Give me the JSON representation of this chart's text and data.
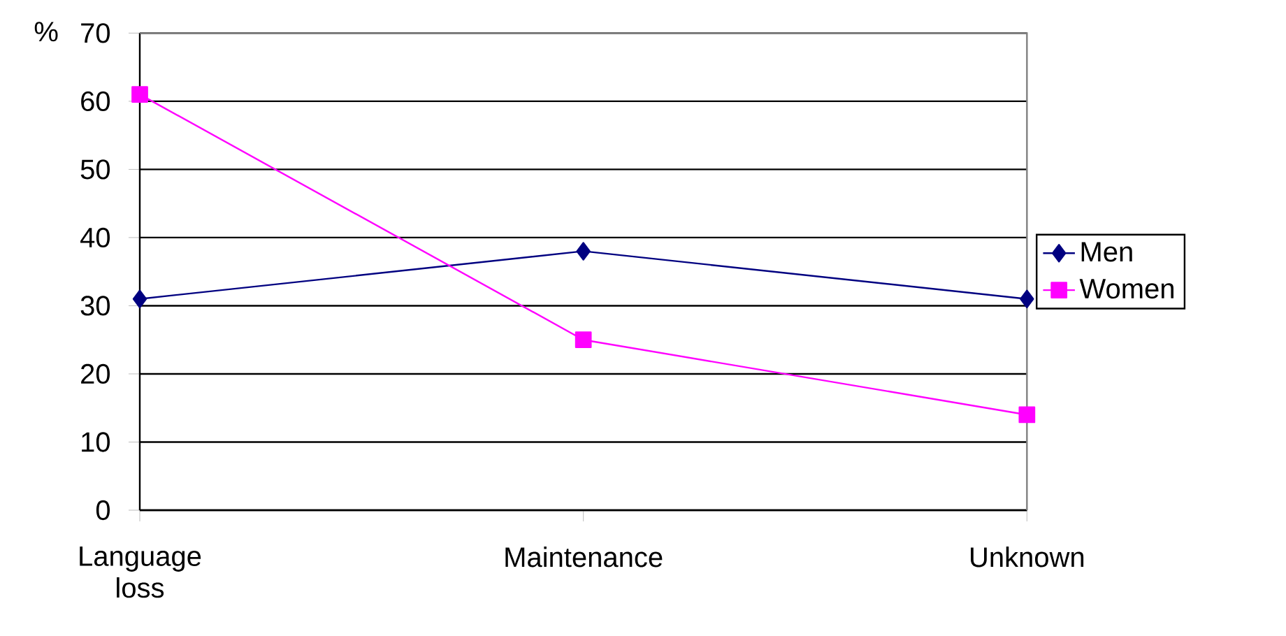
{
  "chart_data": {
    "type": "line",
    "ylabel": "%",
    "categories": [
      "Language loss",
      "Maintenance",
      "Unknown"
    ],
    "series": [
      {
        "name": "Men",
        "color": "#000080",
        "values": [
          31,
          38,
          31
        ],
        "marker": "diamond"
      },
      {
        "name": "Women",
        "color": "#ff00ff",
        "values": [
          61,
          25,
          14
        ],
        "marker": "square"
      }
    ],
    "ylim": [
      0,
      70
    ],
    "yticks": [
      0,
      10,
      20,
      30,
      40,
      50,
      60,
      70
    ],
    "grid": "y",
    "legend": "right",
    "line_style": "solid"
  }
}
